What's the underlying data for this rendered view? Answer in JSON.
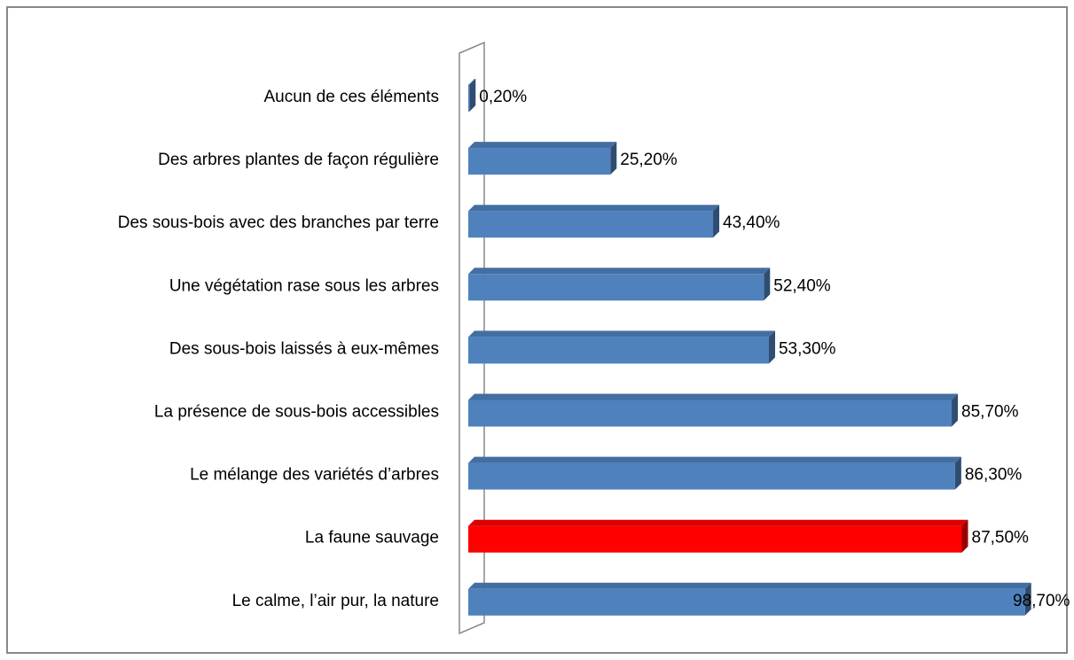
{
  "chart_data": {
    "type": "bar",
    "orientation": "horizontal",
    "categories": [
      "Aucun de ces éléments",
      "Des arbres plantes de façon régulière",
      "Des sous-bois avec des branches par terre",
      "Une végétation rase sous les arbres",
      "Des sous-bois laissés à eux-mêmes",
      "La présence de sous-bois accessibles",
      "Le mélange des variétés d’arbres",
      "La faune sauvage",
      "Le calme, l’air pur, la nature"
    ],
    "values": [
      0.2,
      25.2,
      43.4,
      52.4,
      53.3,
      85.7,
      86.3,
      87.5,
      98.7
    ],
    "value_labels": [
      "0,20%",
      "25,20%",
      "43,40%",
      "52,40%",
      "53,30%",
      "85,70%",
      "86,30%",
      "87,50%",
      "98,70%"
    ],
    "colors": [
      "#4f81bd",
      "#4f81bd",
      "#4f81bd",
      "#4f81bd",
      "#4f81bd",
      "#4f81bd",
      "#4f81bd",
      "#ff0000",
      "#4f81bd"
    ]
  }
}
